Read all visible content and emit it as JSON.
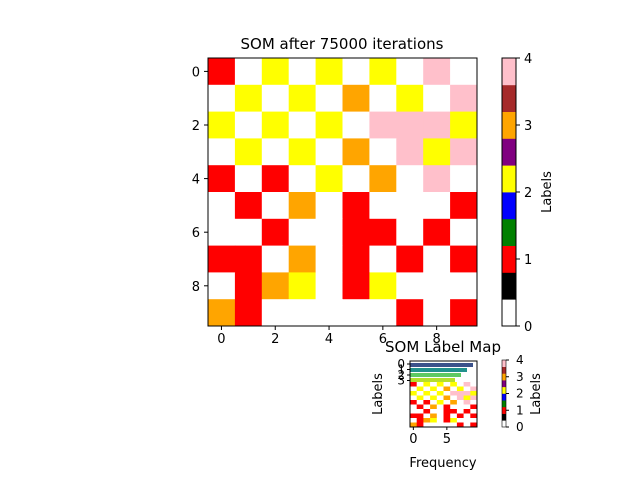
{
  "chart_data": [
    {
      "type": "heatmap",
      "title": "SOM after 75000 iterations",
      "rows": 10,
      "cols": 10,
      "x_ticks": [
        0,
        2,
        4,
        6,
        8
      ],
      "y_ticks": [
        0,
        2,
        4,
        6,
        8
      ],
      "grid": false,
      "values": [
        [
          1,
          0,
          2,
          0,
          2,
          0,
          2,
          0,
          4,
          0
        ],
        [
          0,
          2,
          0,
          2,
          0,
          3,
          0,
          2,
          0,
          4
        ],
        [
          2,
          0,
          2,
          0,
          2,
          0,
          4,
          4,
          4,
          2
        ],
        [
          0,
          2,
          0,
          2,
          0,
          3,
          0,
          4,
          2,
          4
        ],
        [
          1,
          0,
          1,
          0,
          2,
          0,
          3,
          0,
          4,
          0
        ],
        [
          0,
          1,
          0,
          3,
          0,
          1,
          0,
          0,
          0,
          1
        ],
        [
          0,
          0,
          1,
          0,
          0,
          1,
          1,
          0,
          1,
          0
        ],
        [
          1,
          1,
          0,
          3,
          0,
          1,
          0,
          1,
          0,
          1
        ],
        [
          0,
          1,
          3,
          2,
          0,
          1,
          2,
          0,
          0,
          0
        ],
        [
          3,
          1,
          0,
          0,
          0,
          0,
          0,
          1,
          0,
          1
        ]
      ],
      "colorbar": {
        "label": "Labels",
        "ticks": [
          0,
          1,
          2,
          3,
          4
        ],
        "range": [
          0,
          4
        ],
        "colors": [
          "#ffffff",
          "#000000",
          "#ff0000",
          "#008000",
          "#0000ff",
          "#ffff00",
          "#800080",
          "#ffa500",
          "#a52a2a",
          "#ffc0cb"
        ]
      },
      "label_colors": {
        "0": "#ffffff",
        "1": "#ff0000",
        "2": "#ffff00",
        "3": "#ffa500",
        "4": "#ffc0cb"
      }
    },
    {
      "type": "heatmap",
      "title": "SOM Label Map",
      "xlabel": "Frequency",
      "ylabel": "Labels",
      "x_ticks": [
        0,
        5
      ],
      "y_ticks": [
        0,
        1,
        2,
        3
      ],
      "colorbar": {
        "label": "Labels",
        "ticks": [
          0,
          1,
          2,
          3,
          4
        ],
        "range": [
          0,
          4
        ]
      }
    }
  ]
}
